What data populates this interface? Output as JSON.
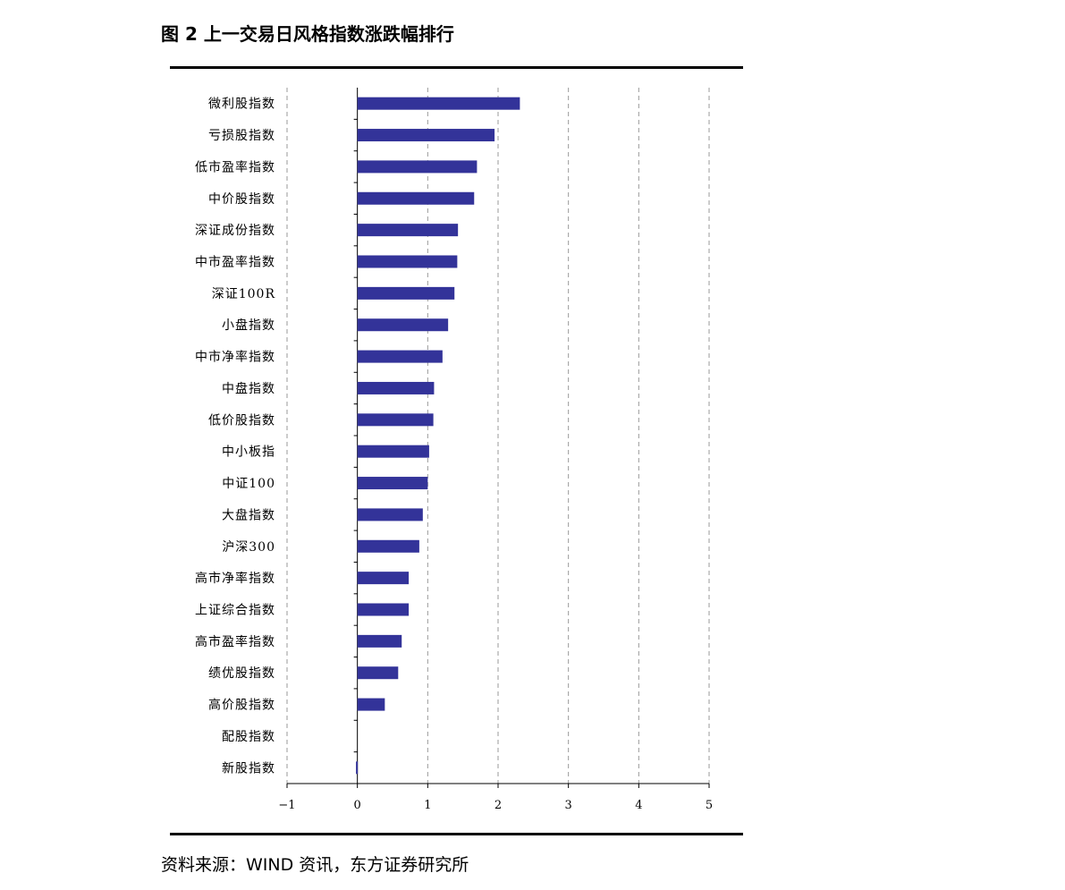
{
  "figure": {
    "title": "图 2  上一交易日风格指数涨跌幅排行",
    "source": "资料来源：WIND 资讯，东方证券研究所"
  },
  "chart_data": {
    "type": "bar",
    "orientation": "horizontal",
    "categories": [
      "微利股指数",
      "亏损股指数",
      "低市盈率指数",
      "中价股指数",
      "深证成份指数",
      "中市盈率指数",
      "深证100R",
      "小盘指数",
      "中市净率指数",
      "中盘指数",
      "低价股指数",
      "中小板指",
      "中证100",
      "大盘指数",
      "沪深300",
      "高市净率指数",
      "上证综合指数",
      "高市盈率指数",
      "绩优股指数",
      "高价股指数",
      "配股指数",
      "新股指数"
    ],
    "values": [
      2.31,
      1.95,
      1.7,
      1.66,
      1.43,
      1.42,
      1.38,
      1.29,
      1.21,
      1.09,
      1.08,
      1.02,
      1.0,
      0.93,
      0.88,
      0.73,
      0.73,
      0.63,
      0.58,
      0.39,
      0.0,
      -0.02
    ],
    "xlim": [
      -1,
      5
    ],
    "xticks": [
      -1,
      0,
      1,
      2,
      3,
      4,
      5
    ],
    "xtick_labels": [
      "−1",
      "0",
      "1",
      "2",
      "3",
      "4",
      "5"
    ],
    "bar_color": "#333399",
    "grid": "vertical dashed"
  }
}
